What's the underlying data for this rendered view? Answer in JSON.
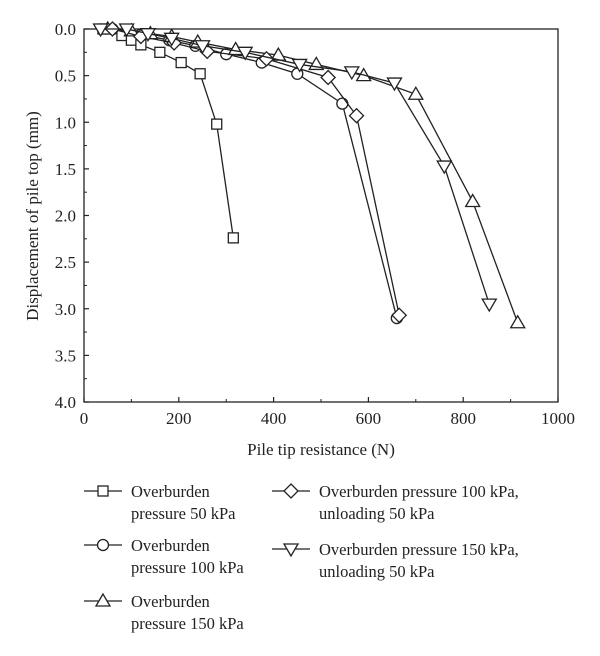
{
  "chart_data": {
    "type": "line",
    "title": "",
    "xlabel": "Pile tip resistance (N)",
    "ylabel": "Displacement of pile top (mm)",
    "xlim": [
      0,
      1000
    ],
    "ylim": [
      0,
      4.0
    ],
    "y_inverted": true,
    "x_ticks": [
      0,
      200,
      400,
      600,
      800,
      1000
    ],
    "y_ticks": [
      0.0,
      0.5,
      1.0,
      1.5,
      2.0,
      2.5,
      3.0,
      3.5,
      4.0
    ],
    "x_tick_labels": [
      "0",
      "200",
      "400",
      "600",
      "800",
      "1000"
    ],
    "y_tick_labels": [
      "0.0",
      "0.5",
      "1.0",
      "1.5",
      "2.0",
      "2.5",
      "3.0",
      "3.5",
      "4.0"
    ],
    "grid": false,
    "legend_position": "bottom",
    "line_color": "#222222",
    "series": [
      {
        "name_lines": [
          "Overburden",
          "pressure 50 kPa"
        ],
        "marker": "square",
        "x": [
          40,
          80,
          100,
          120,
          160,
          205,
          245,
          280,
          315
        ],
        "y": [
          0.0,
          0.07,
          0.12,
          0.17,
          0.25,
          0.36,
          0.48,
          1.02,
          2.24
        ]
      },
      {
        "name_lines": [
          "Overburden",
          "pressure 100 kPa"
        ],
        "marker": "circle",
        "x": [
          60,
          120,
          180,
          235,
          300,
          375,
          450,
          545,
          660
        ],
        "y": [
          0.0,
          0.06,
          0.12,
          0.18,
          0.27,
          0.36,
          0.48,
          0.8,
          3.1
        ]
      },
      {
        "name_lines": [
          "Overburden",
          "pressure 150 kPa"
        ],
        "marker": "triangle-up",
        "x": [
          50,
          100,
          140,
          185,
          240,
          320,
          410,
          490,
          590,
          700,
          820,
          915
        ],
        "y": [
          0.0,
          0.02,
          0.05,
          0.08,
          0.14,
          0.22,
          0.28,
          0.38,
          0.5,
          0.7,
          1.85,
          3.15
        ]
      },
      {
        "name_lines": [
          "Overburden pressure 100 kPa,",
          "unloading 50 kPa"
        ],
        "marker": "diamond",
        "x": [
          60,
          120,
          190,
          260,
          385,
          515,
          575,
          665
        ],
        "y": [
          0.0,
          0.08,
          0.15,
          0.24,
          0.32,
          0.52,
          0.93,
          3.07
        ]
      },
      {
        "name_lines": [
          "Overburden pressure 150 kPa,",
          "unloading 50 kPa"
        ],
        "marker": "triangle-down",
        "x": [
          35,
          90,
          135,
          185,
          250,
          340,
          455,
          565,
          655,
          760,
          855
        ],
        "y": [
          0.0,
          0.0,
          0.05,
          0.1,
          0.18,
          0.25,
          0.38,
          0.46,
          0.58,
          1.47,
          2.95
        ]
      }
    ]
  }
}
